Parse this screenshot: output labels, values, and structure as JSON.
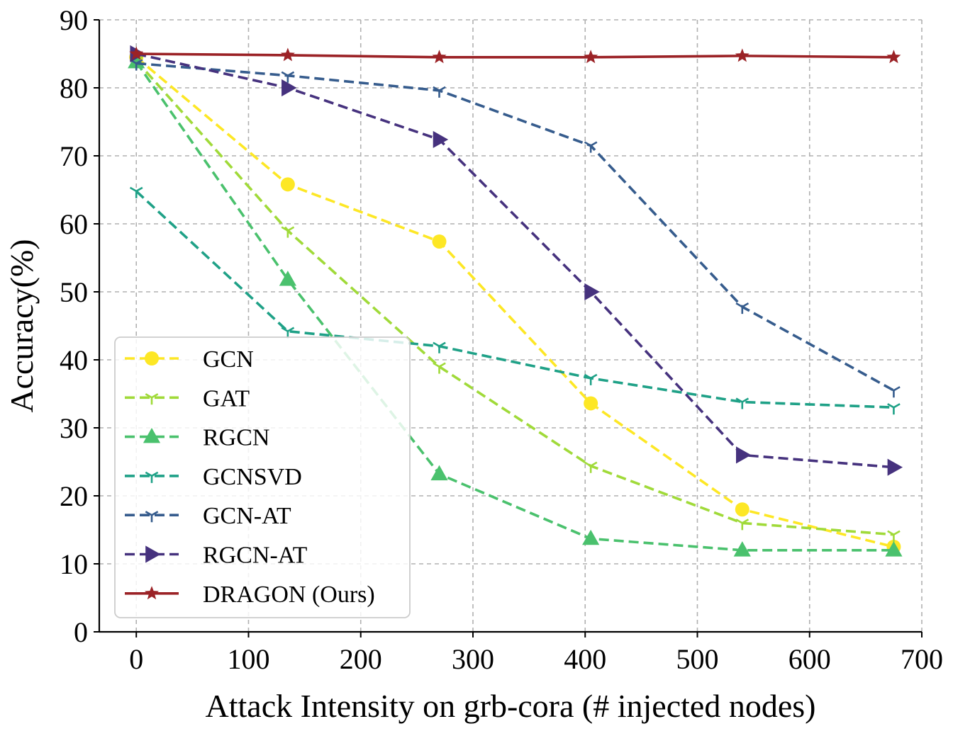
{
  "chart_data": {
    "type": "line",
    "title": "",
    "xlabel": "Attack Intensity on grb-cora (# injected nodes)",
    "ylabel": "Accuracy(%)",
    "xlim": [
      -33,
      700
    ],
    "ylim": [
      0,
      90
    ],
    "xticks": [
      0,
      100,
      200,
      300,
      400,
      500,
      600,
      700
    ],
    "yticks": [
      0,
      10,
      20,
      30,
      40,
      50,
      60,
      70,
      80,
      90
    ],
    "grid": true,
    "legend_position": "lower-left",
    "x": [
      0,
      135,
      270,
      405,
      540,
      675
    ],
    "series": [
      {
        "name": "GCN",
        "color": "#fde725",
        "dash": "dashed",
        "marker": "circle",
        "values": [
          84.5,
          65.8,
          57.4,
          33.6,
          18.0,
          12.5
        ]
      },
      {
        "name": "GAT",
        "color": "#a0da39",
        "dash": "dashed",
        "marker": "tri-star",
        "values": [
          84.0,
          59.0,
          39.0,
          24.4,
          16.0,
          14.3
        ]
      },
      {
        "name": "RGCN",
        "color": "#4ac16d",
        "dash": "dashed",
        "marker": "triangle-up",
        "values": [
          83.8,
          51.8,
          23.2,
          13.7,
          12.0,
          12.0
        ]
      },
      {
        "name": "GCNSVD",
        "color": "#1fa187",
        "dash": "dashed",
        "marker": "tri-star",
        "values": [
          64.8,
          44.2,
          42.0,
          37.3,
          33.8,
          33.0
        ]
      },
      {
        "name": "GCN-AT",
        "color": "#365c8d",
        "dash": "dashed",
        "marker": "tri-star",
        "values": [
          83.6,
          81.8,
          79.6,
          71.5,
          47.8,
          35.5
        ]
      },
      {
        "name": "RGCN-AT",
        "color": "#46327e",
        "dash": "dashed",
        "marker": "triangle-right",
        "values": [
          85.0,
          80.0,
          72.4,
          50.0,
          26.0,
          24.2
        ]
      },
      {
        "name": "DRAGON (Ours)",
        "color": "#9b2226",
        "dash": "solid",
        "marker": "star",
        "values": [
          85.0,
          84.8,
          84.5,
          84.5,
          84.7,
          84.5
        ]
      }
    ]
  }
}
